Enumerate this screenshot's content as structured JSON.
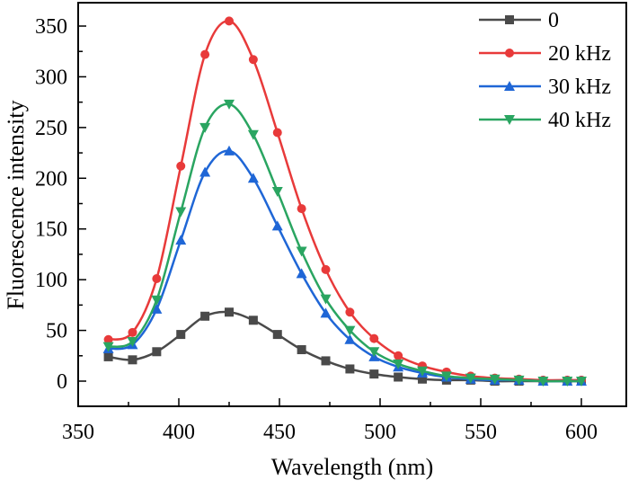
{
  "chart_data": {
    "type": "line",
    "title": "",
    "xlabel": "Wavelength (nm)",
    "ylabel": "Fluorescence intensity",
    "xlim": [
      350,
      620
    ],
    "ylim": [
      -25,
      368
    ],
    "xticks": [
      350,
      400,
      450,
      500,
      550,
      600
    ],
    "yticks": [
      0,
      50,
      100,
      150,
      200,
      250,
      300,
      350
    ],
    "grid": false,
    "legend_position": "top-right",
    "x": [
      365,
      377,
      389,
      401,
      413,
      425,
      437,
      449,
      461,
      473,
      485,
      497,
      509,
      521,
      533,
      545,
      557,
      569,
      581,
      593,
      600
    ],
    "series": [
      {
        "name": "0",
        "color": "#4a4a4a",
        "marker": "square",
        "values": [
          24,
          21,
          29,
          46,
          64,
          68,
          60,
          46,
          31,
          20,
          12,
          7,
          4,
          2,
          1,
          1,
          0,
          0,
          0,
          0,
          0
        ]
      },
      {
        "name": "20 kHz",
        "color": "#e83a3a",
        "marker": "circle",
        "values": [
          41,
          48,
          101,
          212,
          322,
          355,
          317,
          245,
          170,
          110,
          68,
          42,
          25,
          15,
          9,
          5,
          3,
          2,
          1,
          1,
          1
        ]
      },
      {
        "name": "30 kHz",
        "color": "#1f66d6",
        "marker": "triangle-up",
        "values": [
          32,
          36,
          71,
          139,
          206,
          227,
          200,
          153,
          106,
          67,
          41,
          24,
          14,
          8,
          4,
          2,
          1,
          1,
          0,
          0,
          0
        ]
      },
      {
        "name": "40 kHz",
        "color": "#2aa561",
        "marker": "triangle-down",
        "values": [
          34,
          39,
          80,
          167,
          250,
          273,
          243,
          187,
          128,
          81,
          50,
          29,
          17,
          10,
          5,
          3,
          2,
          1,
          0,
          0,
          0
        ]
      }
    ]
  }
}
